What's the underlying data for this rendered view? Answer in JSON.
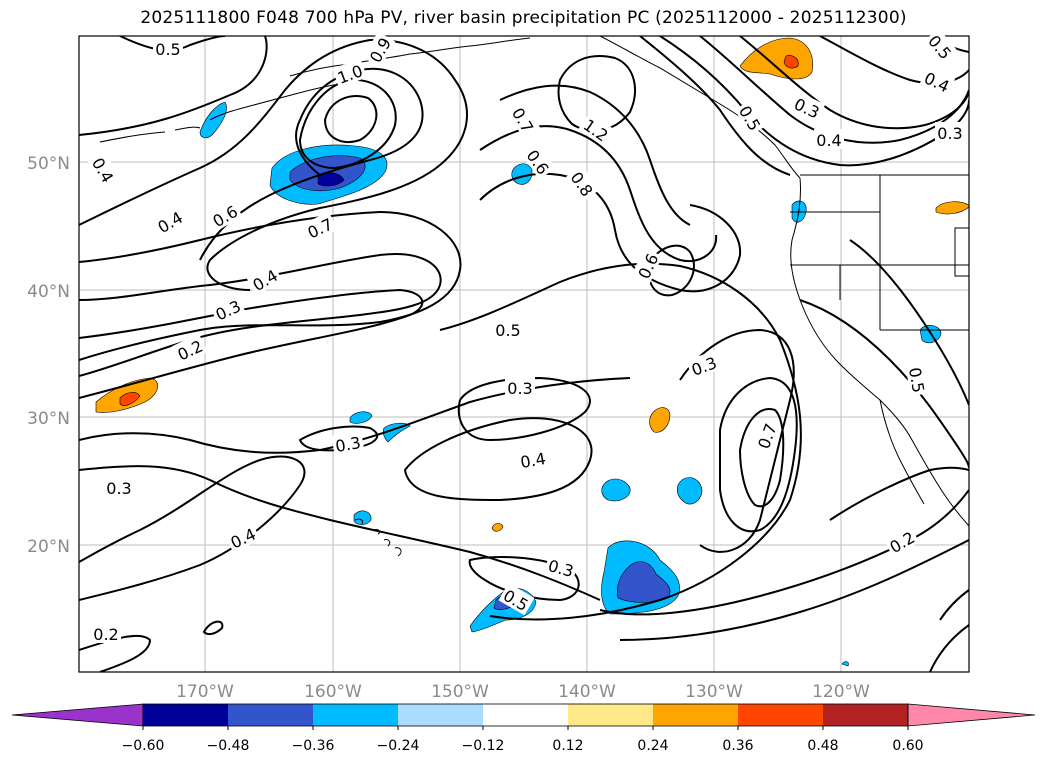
{
  "title": "2025111800 F048 700 hPa PV, river basin precipitation PC (2025112000 - 2025112300)",
  "map": {
    "lat_labels": [
      "50°N",
      "40°N",
      "30°N",
      "20°N"
    ],
    "lon_labels": [
      "170°W",
      "160°W",
      "150°W",
      "140°W",
      "130°W",
      "120°W"
    ],
    "contour_labels": [
      "0.5",
      "1.0",
      "0.9",
      "0.4",
      "0.4",
      "0.6",
      "0.7",
      "0.4",
      "0.3",
      "0.2",
      "0.7",
      "0.6",
      "0.8",
      "1.2",
      "0.6",
      "0.5",
      "0.3",
      "0.3",
      "0.5",
      "0.3",
      "0.4",
      "0.3",
      "0.4",
      "0.5",
      "0.3",
      "0.4",
      "0.2",
      "0.3",
      "0.7",
      "0.2",
      "0.5",
      "0.4",
      "0.3",
      "0.5"
    ],
    "coast_color": "#000000",
    "contour_color": "#000000"
  },
  "colorbar": {
    "ticks": [
      "−0.60",
      "−0.48",
      "−0.36",
      "−0.24",
      "−0.12",
      "0.12",
      "0.24",
      "0.36",
      "0.48",
      "0.60"
    ],
    "colors": [
      "#9933cc",
      "#000099",
      "#3355cc",
      "#00bbff",
      "#aaddff",
      "#ffffff",
      "#ffe888",
      "#ffa500",
      "#ff4500",
      "#b22222",
      "#ff88aa"
    ]
  }
}
